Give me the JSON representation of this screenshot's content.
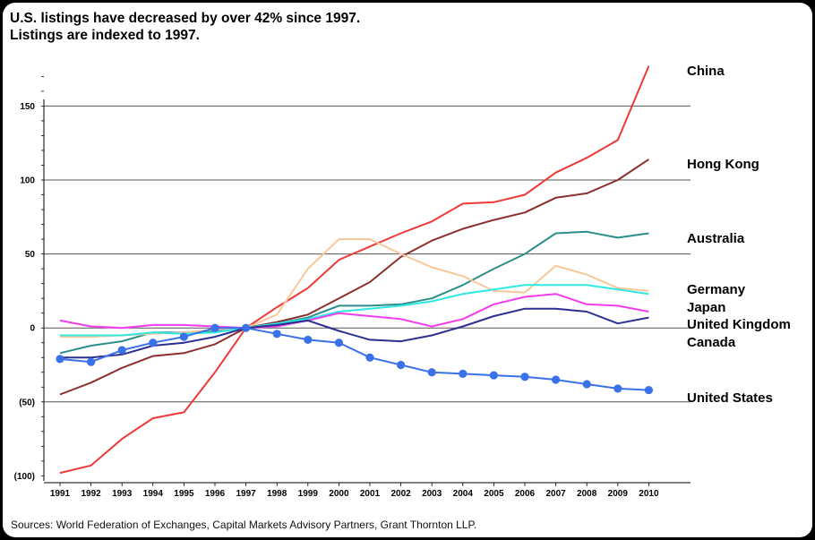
{
  "chart_data": {
    "type": "line",
    "title": "U.S. listings have decreased by over 42% since 1997.",
    "subtitle": "Listings are indexed to 1997.",
    "source": "Sources: World Federation of Exchanges, Capital Markets Advisory Partners, Grant Thornton LLP.",
    "xlabel": "",
    "ylabel": "",
    "ylim": [
      -100,
      175
    ],
    "yticks": [
      150,
      100,
      50,
      0,
      -50,
      -100
    ],
    "ytick_labels": [
      "150",
      "100",
      "50",
      "0",
      "(50)",
      "(100)"
    ],
    "categories": [
      "1991",
      "1992",
      "1993",
      "1994",
      "1995",
      "1996",
      "1997",
      "1998",
      "1999",
      "2000",
      "2001",
      "2002",
      "2003",
      "2004",
      "2005",
      "2006",
      "2007",
      "2008",
      "2009",
      "2010"
    ],
    "legend_position": "right",
    "series": [
      {
        "name": "China",
        "color": "#ee3a36",
        "values": [
          -98,
          -93,
          -75,
          -61,
          -57,
          -30,
          0,
          14,
          27,
          46,
          55,
          64,
          72,
          84,
          85,
          90,
          105,
          115,
          127,
          177
        ]
      },
      {
        "name": "Hong Kong",
        "color": "#8b2f2f",
        "values": [
          -45,
          -37,
          -27,
          -19,
          -17,
          -11,
          0,
          4,
          9,
          20,
          31,
          48,
          59,
          67,
          73,
          78,
          88,
          91,
          100,
          114
        ]
      },
      {
        "name": "Australia",
        "color": "#2a8f8a",
        "values": [
          -17,
          -12,
          -9,
          -3,
          -3,
          -2,
          0,
          3,
          7,
          15,
          15,
          16,
          20,
          29,
          40,
          50,
          64,
          65,
          61,
          64
        ]
      },
      {
        "name": "Germany",
        "color": "#f8c89a",
        "values": [
          -6,
          -6,
          -5,
          -4,
          -3,
          -1,
          0,
          9,
          40,
          60,
          60,
          50,
          41,
          35,
          25,
          24,
          42,
          36,
          27,
          25
        ]
      },
      {
        "name": "Japan",
        "color": "#2fe8e4",
        "values": [
          -5,
          -5,
          -5,
          -3,
          -4,
          -3,
          0,
          3,
          6,
          11,
          13,
          15,
          18,
          23,
          26,
          29,
          29,
          29,
          26,
          23
        ]
      },
      {
        "name": "United Kingdom",
        "color": "#f23cf0",
        "values": [
          5,
          1,
          0,
          2,
          2,
          1,
          0,
          1,
          5,
          10,
          8,
          6,
          1,
          6,
          16,
          21,
          23,
          16,
          15,
          11
        ]
      },
      {
        "name": "Canada",
        "color": "#2b2f8f",
        "values": [
          -20,
          -20,
          -18,
          -12,
          -10,
          -6,
          0,
          2,
          5,
          -2,
          -8,
          -9,
          -5,
          1,
          8,
          13,
          13,
          11,
          3,
          7
        ]
      },
      {
        "name": "United States",
        "color": "#3a71e8",
        "values": [
          -21,
          -23,
          -15,
          -10,
          -6,
          0,
          0,
          -4,
          -8,
          -10,
          -20,
          -25,
          -30,
          -31,
          -32,
          -33,
          -35,
          -38,
          -41,
          -42
        ]
      }
    ]
  }
}
